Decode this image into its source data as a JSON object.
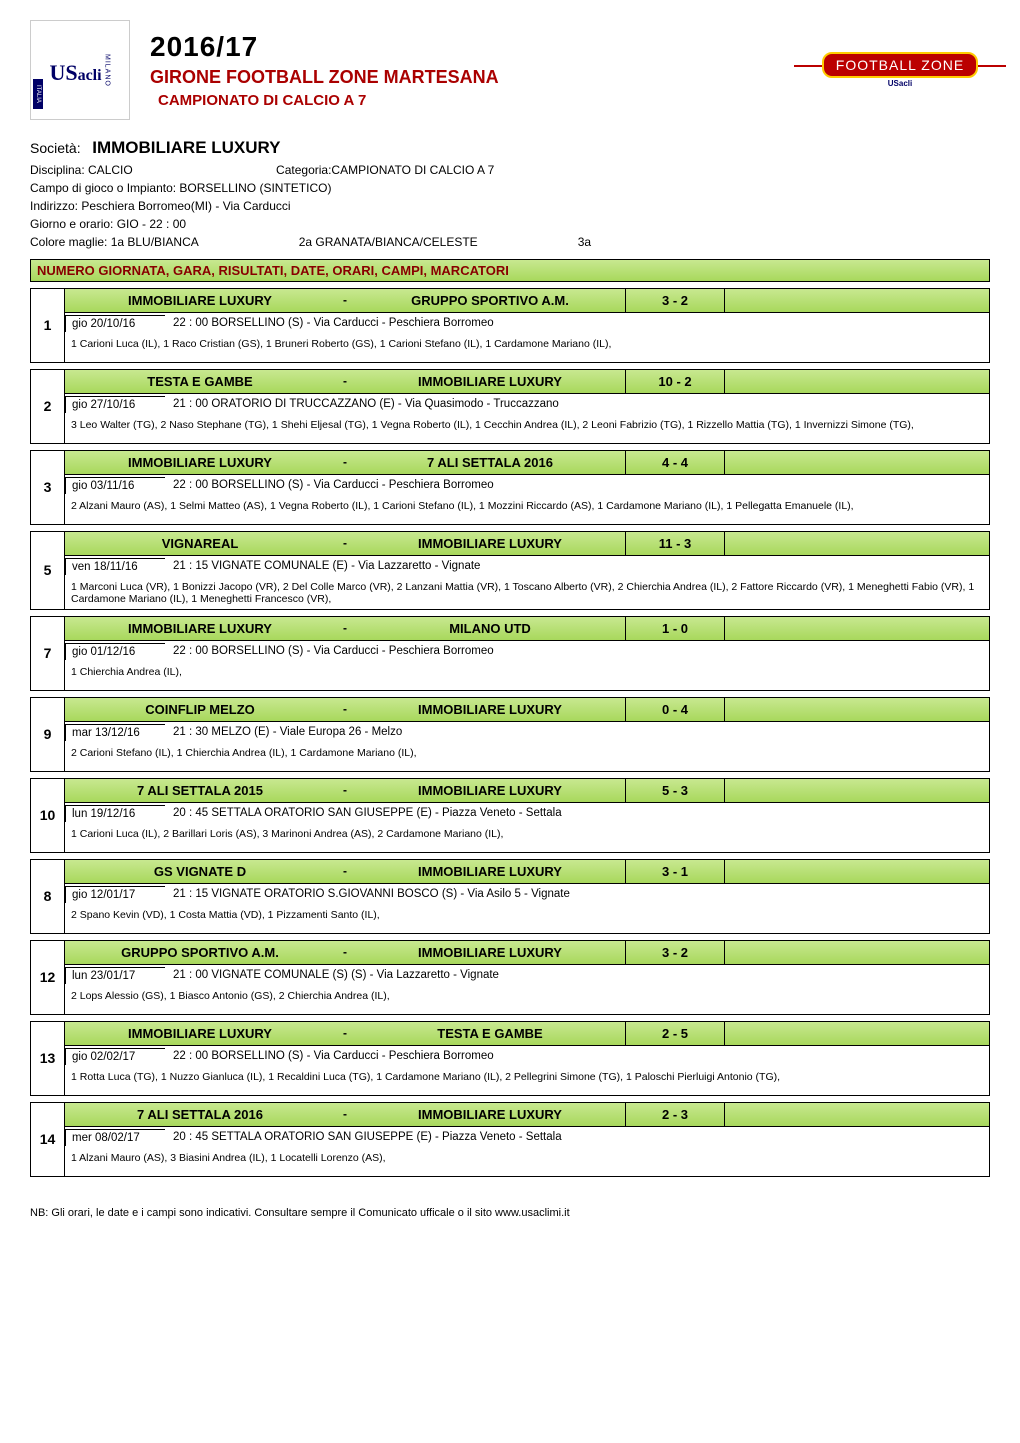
{
  "header": {
    "season": "2016/17",
    "girone": "GIRONE FOOTBALL ZONE MARTESANA",
    "campionato": "CAMPIONATO DI CALCIO A 7",
    "fz_logo_text": "FOOTBALL ZONE",
    "fz_logo_sub": "USacli"
  },
  "info": {
    "societa_label": "Società:",
    "societa": "IMMOBILIARE LUXURY",
    "disciplina_label": "Disciplina: CALCIO",
    "categoria_label": "Categoria:",
    "categoria": "CAMPIONATO DI CALCIO A 7",
    "campo_label": "Campo di gioco o Impianto:  BORSELLINO (SINTETICO)",
    "indirizzo_label": "Indirizzo:   Peschiera Borromeo(MI) - Via Carducci",
    "giorno_label": "Giorno e orario: GIO - 22 : 00",
    "colore1": "Colore maglie:   1a BLU/BIANCA",
    "colore2": "2a GRANATA/BIANCA/CELESTE",
    "colore3": "3a"
  },
  "table_header": "NUMERO GIORNATA, GARA, RISULTATI, DATE, ORARI, CAMPI, MARCATORI",
  "matches": [
    {
      "num": "1",
      "home": "IMMOBILIARE LUXURY",
      "away": "GRUPPO SPORTIVO A.M.",
      "score": "3 - 2",
      "date": "gio 20/10/16",
      "venue": "22 : 00 BORSELLINO  (S) - Via Carducci - Peschiera Borromeo",
      "scorers": "1 Carioni Luca (IL), 1 Raco Cristian (GS), 1 Bruneri Roberto (GS), 1 Carioni Stefano (IL), 1 Cardamone Mariano (IL),"
    },
    {
      "num": "2",
      "home": "TESTA E GAMBE",
      "away": "IMMOBILIARE LUXURY",
      "score": "10 - 2",
      "date": "gio 27/10/16",
      "venue": "21 : 00 ORATORIO DI TRUCCAZZANO (E) - Via Quasimodo - Truccazzano",
      "scorers": "3 Leo Walter (TG), 2 Naso Stephane (TG), 1 Shehi Eljesal (TG), 1 Vegna Roberto (IL), 1 Cecchin Andrea (IL), 2 Leoni Fabrizio (TG), 1 Rizzello Mattia (TG), 1 Invernizzi Simone (TG),"
    },
    {
      "num": "3",
      "home": "IMMOBILIARE LUXURY",
      "away": "7 ALI SETTALA 2016",
      "score": "4 - 4",
      "date": "gio 03/11/16",
      "venue": "22 : 00 BORSELLINO  (S) - Via Carducci - Peschiera Borromeo",
      "scorers": "2 Alzani Mauro (AS), 1 Selmi Matteo (AS), 1 Vegna Roberto (IL), 1 Carioni Stefano (IL), 1 Mozzini Riccardo (AS), 1 Cardamone Mariano (IL), 1 Pellegatta Emanuele (IL),"
    },
    {
      "num": "5",
      "home": "VIGNAREAL",
      "away": "IMMOBILIARE LUXURY",
      "score": "11 - 3",
      "date": "ven 18/11/16",
      "venue": "21 : 15 VIGNATE COMUNALE (E) - Via Lazzaretto - Vignate",
      "scorers": "1 Marconi Luca (VR), 1 Bonizzi Jacopo (VR), 2 Del Colle Marco (VR), 2 Lanzani Mattia  (VR), 1 Toscano Alberto (VR), 2 Chierchia Andrea (IL), 2 Fattore Riccardo (VR), 1 Meneghetti Fabio (VR), 1 Cardamone Mariano (IL), 1 Meneghetti Francesco (VR),"
    },
    {
      "num": "7",
      "home": "IMMOBILIARE LUXURY",
      "away": "MILANO UTD",
      "score": "1 - 0",
      "date": "gio 01/12/16",
      "venue": "22 : 00 BORSELLINO  (S) - Via Carducci - Peschiera Borromeo",
      "scorers": "1 Chierchia Andrea (IL),"
    },
    {
      "num": "9",
      "home": "COINFLIP MELZO",
      "away": "IMMOBILIARE LUXURY",
      "score": "0 - 4",
      "date": "mar 13/12/16",
      "venue": "21 : 30 MELZO (E) - Viale Europa 26 - Melzo",
      "scorers": "2 Carioni Stefano (IL), 1 Chierchia Andrea (IL), 1 Cardamone Mariano (IL),"
    },
    {
      "num": "10",
      "home": "7 ALI SETTALA 2015",
      "away": "IMMOBILIARE LUXURY",
      "score": "5 - 3",
      "date": "lun 19/12/16",
      "venue": "20 : 45 SETTALA ORATORIO SAN GIUSEPPE (E) - Piazza Veneto - Settala",
      "scorers": "1 Carioni Luca  (IL), 2 Barillari Loris (AS), 3 Marinoni Andrea (AS), 2 Cardamone Mariano (IL),"
    },
    {
      "num": "8",
      "home": "GS VIGNATE D",
      "away": "IMMOBILIARE LUXURY",
      "score": "3 - 1",
      "date": "gio 12/01/17",
      "venue": "21 : 15 VIGNATE ORATORIO S.GIOVANNI BOSCO  (S) - Via Asilo 5 - Vignate",
      "scorers": "2 Spano Kevin (VD), 1 Costa Mattia (VD), 1 Pizzamenti Santo (IL),"
    },
    {
      "num": "12",
      "home": "GRUPPO SPORTIVO A.M.",
      "away": "IMMOBILIARE LUXURY",
      "score": "3 - 2",
      "date": "lun 23/01/17",
      "venue": "21 : 00 VIGNATE COMUNALE (S) (S) - Via Lazzaretto - Vignate",
      "scorers": "2 Lops Alessio (GS), 1 Biasco Antonio (GS), 2 Chierchia Andrea (IL),"
    },
    {
      "num": "13",
      "home": "IMMOBILIARE LUXURY",
      "away": "TESTA E GAMBE",
      "score": "2 - 5",
      "date": "gio 02/02/17",
      "venue": "22 : 00 BORSELLINO  (S) - Via Carducci - Peschiera Borromeo",
      "scorers": "1 Rotta Luca  (TG), 1 Nuzzo Gianluca (IL), 1 Recaldini Luca (TG), 1 Cardamone Mariano (IL), 2 Pellegrini Simone (TG), 1 Paloschi Pierluigi Antonio (TG),"
    },
    {
      "num": "14",
      "home": "7 ALI SETTALA 2016",
      "away": "IMMOBILIARE LUXURY",
      "score": "2 - 3",
      "date": "mer 08/02/17",
      "venue": "20 : 45 SETTALA ORATORIO SAN GIUSEPPE (E) - Piazza Veneto - Settala",
      "scorers": "1 Alzani Mauro (AS), 3 Biasini Andrea (IL), 1 Locatelli Lorenzo (AS),"
    }
  ],
  "footnote": "NB: Gli orari, le date e i campi sono indicativi. Consultare sempre il Comunicato ufficale o il sito www.usaclimi.it"
}
